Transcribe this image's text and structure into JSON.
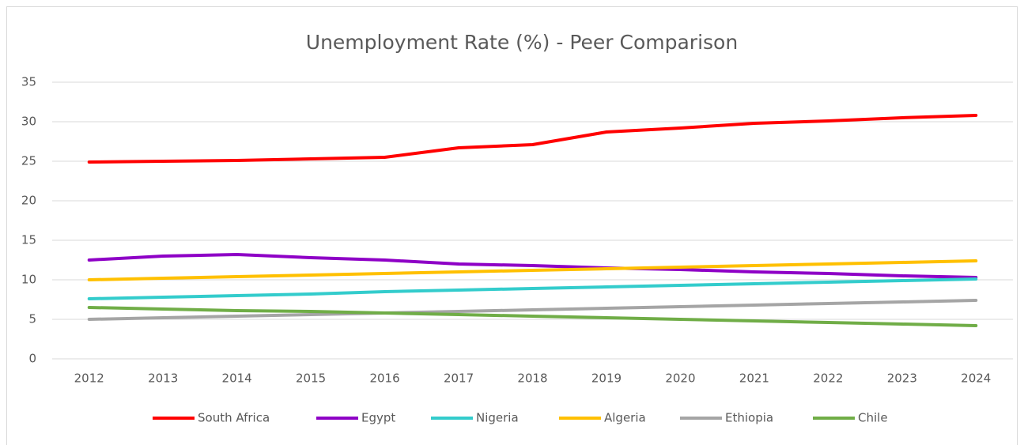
{
  "chart_data": {
    "type": "line",
    "title": "Unemployment Rate (%) - Peer Comparison",
    "categories": [
      "2012",
      "2013",
      "2014",
      "2015",
      "2016",
      "2017",
      "2018",
      "2019",
      "2020",
      "2021",
      "2022",
      "2023",
      "2024"
    ],
    "series": [
      {
        "name": "South Africa",
        "color": "#ff0000",
        "values": [
          24.9,
          25.0,
          25.1,
          25.3,
          25.5,
          26.7,
          27.1,
          28.7,
          29.2,
          29.8,
          30.1,
          30.5,
          30.8
        ]
      },
      {
        "name": "Egypt",
        "color": "#8e00c6",
        "values": [
          12.5,
          13.0,
          13.2,
          12.8,
          12.5,
          12.0,
          11.8,
          11.5,
          11.3,
          11.0,
          10.8,
          10.5,
          10.3
        ]
      },
      {
        "name": "Nigeria",
        "color": "#33cccc",
        "values": [
          7.6,
          7.8,
          8.0,
          8.2,
          8.5,
          8.7,
          8.9,
          9.1,
          9.3,
          9.5,
          9.7,
          9.9,
          10.1
        ]
      },
      {
        "name": "Algeria",
        "color": "#ffc000",
        "values": [
          10.0,
          10.2,
          10.4,
          10.6,
          10.8,
          11.0,
          11.2,
          11.4,
          11.6,
          11.8,
          12.0,
          12.2,
          12.4
        ]
      },
      {
        "name": "Ethiopia",
        "color": "#a5a5a5",
        "values": [
          5.0,
          5.2,
          5.4,
          5.6,
          5.8,
          6.0,
          6.2,
          6.4,
          6.6,
          6.8,
          7.0,
          7.2,
          7.4
        ]
      },
      {
        "name": "Chile",
        "color": "#70ad47",
        "values": [
          6.5,
          6.3,
          6.1,
          6.0,
          5.8,
          5.6,
          5.4,
          5.2,
          5.0,
          4.8,
          4.6,
          4.4,
          4.2
        ]
      }
    ],
    "ylim": [
      0,
      35
    ],
    "yticks": [
      0,
      5,
      10,
      15,
      20,
      25,
      30,
      35
    ],
    "grid": true,
    "legend": "bottom"
  }
}
